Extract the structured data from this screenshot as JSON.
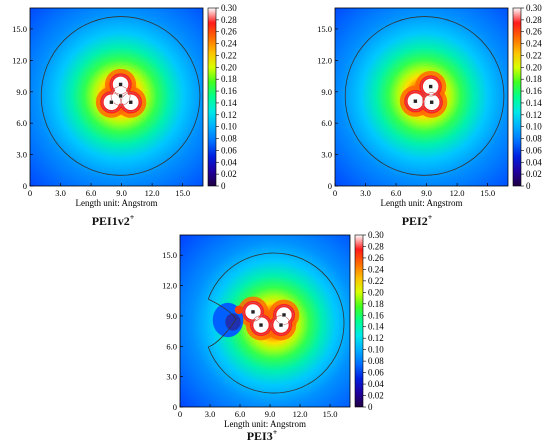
{
  "colorbar": {
    "ticks": [
      "0.30",
      "0.28",
      "0.26",
      "0.24",
      "0.22",
      "0.20",
      "0.18",
      "0.16",
      "0.14",
      "0.12",
      "0.10",
      "0.08",
      "0.06",
      "0.04",
      "0.02",
      "0"
    ],
    "stops": [
      "#ffffff",
      "#ff1a1a",
      "#ff6a00",
      "#ffc000",
      "#d8ff00",
      "#40ff20",
      "#00ff90",
      "#00e8e8",
      "#00b0ff",
      "#0070ff",
      "#0020e0",
      "#2000a0",
      "#200040"
    ]
  },
  "chart_data": [
    {
      "type": "heatmap",
      "caption": "PEI1v2",
      "caption_sup": "+",
      "xlabel": "Length unit: Angstrom",
      "ylabel": "",
      "xticks": [
        "0",
        "3.0",
        "6.0",
        "9.0",
        "12.0",
        "15.0"
      ],
      "yticks": [
        "0",
        "3.0",
        "6.0",
        "9.0",
        "12.0",
        "15.0"
      ],
      "xlim": [
        0,
        17
      ],
      "ylim": [
        0,
        17
      ],
      "clim": [
        0,
        0.3
      ],
      "center": [
        8.9,
        8.6
      ],
      "boundary_radius": 7.8,
      "atoms": [
        [
          8.9,
          9.7
        ],
        [
          8.0,
          8.0
        ],
        [
          9.9,
          8.0
        ],
        [
          8.9,
          8.6
        ]
      ]
    },
    {
      "type": "heatmap",
      "caption": "PEI2",
      "caption_sup": "+",
      "xlabel": "Length unit: Angstrom",
      "ylabel": "",
      "xticks": [
        "0",
        "3.0",
        "6.0",
        "9.0",
        "12.0",
        "15.0"
      ],
      "yticks": [
        "0",
        "3.0",
        "6.0",
        "9.0",
        "12.0",
        "15.0"
      ],
      "xlim": [
        0,
        17
      ],
      "ylim": [
        0,
        17
      ],
      "clim": [
        0,
        0.3
      ],
      "center": [
        8.8,
        8.6
      ],
      "boundary_radius": 7.8,
      "atoms": [
        [
          9.4,
          9.5
        ],
        [
          7.9,
          8.1
        ],
        [
          9.5,
          8.0
        ]
      ]
    },
    {
      "type": "heatmap",
      "caption": "PEI3",
      "caption_sup": "+",
      "xlabel": "Length unit: Angstrom",
      "ylabel": "",
      "xticks": [
        "0",
        "3.0",
        "6.0",
        "9.0",
        "12.0",
        "15.0"
      ],
      "yticks": [
        "0",
        "3.0",
        "6.0",
        "9.0",
        "12.0",
        "15.0"
      ],
      "xlim": [
        0,
        17
      ],
      "ylim": [
        0,
        17
      ],
      "clim": [
        0,
        0.3
      ],
      "center": [
        9.4,
        8.3
      ],
      "boundary_radius": 7.0,
      "atoms": [
        [
          7.3,
          9.4
        ],
        [
          8.1,
          8.1
        ],
        [
          10.1,
          8.1
        ],
        [
          10.4,
          9.1
        ]
      ]
    }
  ]
}
